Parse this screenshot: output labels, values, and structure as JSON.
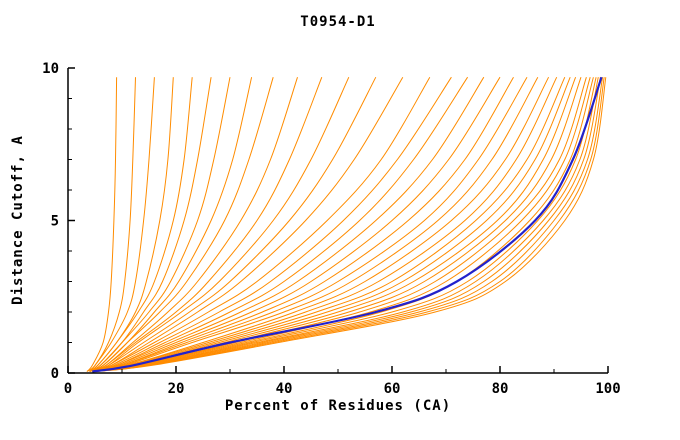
{
  "chart_data": {
    "type": "line",
    "title": "T0954-D1",
    "xlabel": "Percent of Residues (CA)",
    "ylabel": "Distance Cutoff, A",
    "xlim": [
      0,
      100
    ],
    "ylim": [
      0,
      10
    ],
    "x_major_ticks": [
      0,
      20,
      40,
      60,
      80,
      100
    ],
    "x_minor_ticks": [
      10,
      30,
      50,
      70,
      90
    ],
    "y_major_ticks": [
      0,
      5,
      10
    ],
    "y_minor_ticks": [
      1,
      2,
      3,
      4,
      6,
      7,
      8,
      9
    ],
    "grid": false,
    "legend": "none",
    "model_color": "#ff8c00",
    "reference_color": "#2222cc",
    "y_grid": [
      0.05,
      0.25,
      1,
      2,
      3,
      5,
      7,
      9.7
    ],
    "model_curves": [
      [
        3.5,
        4.5,
        6.5,
        7.5,
        8,
        8.5,
        8.8,
        9
      ],
      [
        3.5,
        5,
        7.5,
        9.5,
        10.5,
        11.5,
        12,
        12.5
      ],
      [
        4,
        5,
        8,
        11,
        12.5,
        14,
        15,
        16
      ],
      [
        4,
        5.5,
        9,
        12.5,
        14.5,
        17,
        18.5,
        19.5
      ],
      [
        4,
        5.5,
        9,
        13,
        16,
        19.5,
        21.5,
        23
      ],
      [
        4,
        6,
        10,
        14,
        17.5,
        21.5,
        24,
        26.5
      ],
      [
        4,
        6,
        10,
        15,
        19,
        24,
        27,
        30
      ],
      [
        4,
        6.5,
        11,
        16,
        20.5,
        26.5,
        30.5,
        34
      ],
      [
        4,
        6.5,
        11,
        17,
        22,
        29,
        33.5,
        38
      ],
      [
        4,
        7,
        12,
        18.5,
        24,
        32,
        37.5,
        42.5
      ],
      [
        4,
        7,
        12.5,
        20,
        26,
        35,
        41,
        47
      ],
      [
        4.5,
        7.5,
        13,
        21,
        28,
        38,
        45,
        52
      ],
      [
        4.5,
        7.5,
        14,
        22.5,
        30,
        41,
        49,
        57
      ],
      [
        4.5,
        8,
        15,
        24,
        32,
        44,
        53,
        62
      ],
      [
        4.5,
        8,
        16,
        26,
        35,
        48,
        58,
        67
      ],
      [
        4.5,
        8.5,
        17,
        28,
        37.5,
        51,
        61,
        71
      ],
      [
        5,
        9,
        18,
        30,
        40,
        54,
        64,
        74
      ],
      [
        5,
        9,
        19,
        32,
        42.5,
        57,
        67.5,
        77
      ],
      [
        5,
        9.5,
        20,
        34,
        45,
        60,
        70.5,
        80
      ],
      [
        5,
        10,
        21,
        36,
        47.5,
        63,
        73.5,
        82.5
      ],
      [
        5,
        10,
        22,
        38,
        50,
        66,
        76,
        85
      ],
      [
        5,
        10.5,
        23,
        40,
        52.5,
        68.5,
        78.5,
        87
      ],
      [
        5,
        11,
        25,
        42,
        55,
        71,
        81,
        89
      ],
      [
        5,
        11,
        26,
        44,
        57.5,
        73.5,
        83,
        90.5
      ],
      [
        5,
        11.5,
        27,
        46,
        60,
        75.5,
        85,
        92
      ],
      [
        5,
        12,
        28,
        48,
        62,
        77.5,
        86.5,
        93
      ],
      [
        5,
        12,
        29,
        50,
        64,
        79.5,
        88,
        94
      ],
      [
        5,
        12.5,
        30,
        52,
        66,
        81,
        89.5,
        95
      ],
      [
        5,
        13,
        31,
        54,
        68,
        82.5,
        91,
        96
      ],
      [
        5,
        13,
        32,
        56,
        70,
        84,
        92,
        96.7
      ],
      [
        5,
        13.5,
        33,
        58,
        72,
        85.5,
        93,
        97.3
      ],
      [
        5,
        14,
        34,
        60,
        74,
        87,
        94,
        97.8
      ],
      [
        5,
        14,
        35,
        62,
        75.5,
        88,
        94.8,
        98.2
      ],
      [
        5,
        14.5,
        36,
        63.5,
        77,
        89,
        95.5,
        98.6
      ],
      [
        5,
        15,
        37,
        65,
        78.5,
        90,
        96.2,
        99
      ],
      [
        5,
        15,
        38,
        66.5,
        80,
        91,
        96.8,
        99.3
      ],
      [
        5,
        15.5,
        39,
        68,
        81,
        92,
        97.3,
        99.6
      ]
    ],
    "reference_curve": [
      4.5,
      12,
      30,
      57,
      72,
      86.5,
      93.5,
      98.8
    ]
  }
}
